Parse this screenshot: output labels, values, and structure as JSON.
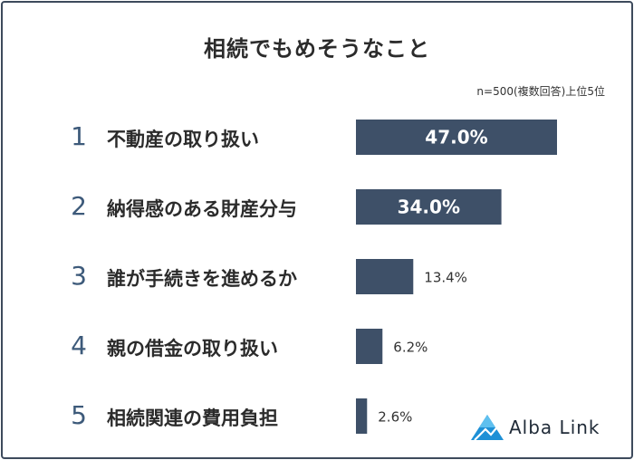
{
  "chart_data": {
    "type": "bar",
    "title": "相続でもめそうなこと",
    "note": "n=500(複数回答)上位5位",
    "ranks": [
      "1",
      "2",
      "3",
      "4",
      "5"
    ],
    "categories": [
      "不動産の取り扱い",
      "納得感のある財産分与",
      "誰が手続きを進めるか",
      "親の借金の取り扱い",
      "相続関連の費用負担"
    ],
    "values": [
      47.0,
      34.0,
      13.4,
      6.2,
      2.6
    ],
    "value_labels": [
      "47.0%",
      "34.0%",
      "13.4%",
      "6.2%",
      "2.6%"
    ],
    "xlim": [
      0,
      50
    ],
    "bar_color": "#3e5068",
    "inside_label_color": "#ffffff",
    "outside_label_color": "#333333"
  },
  "brand": {
    "name": "Alba Link",
    "logo_icon": "triangle-logo-icon"
  }
}
